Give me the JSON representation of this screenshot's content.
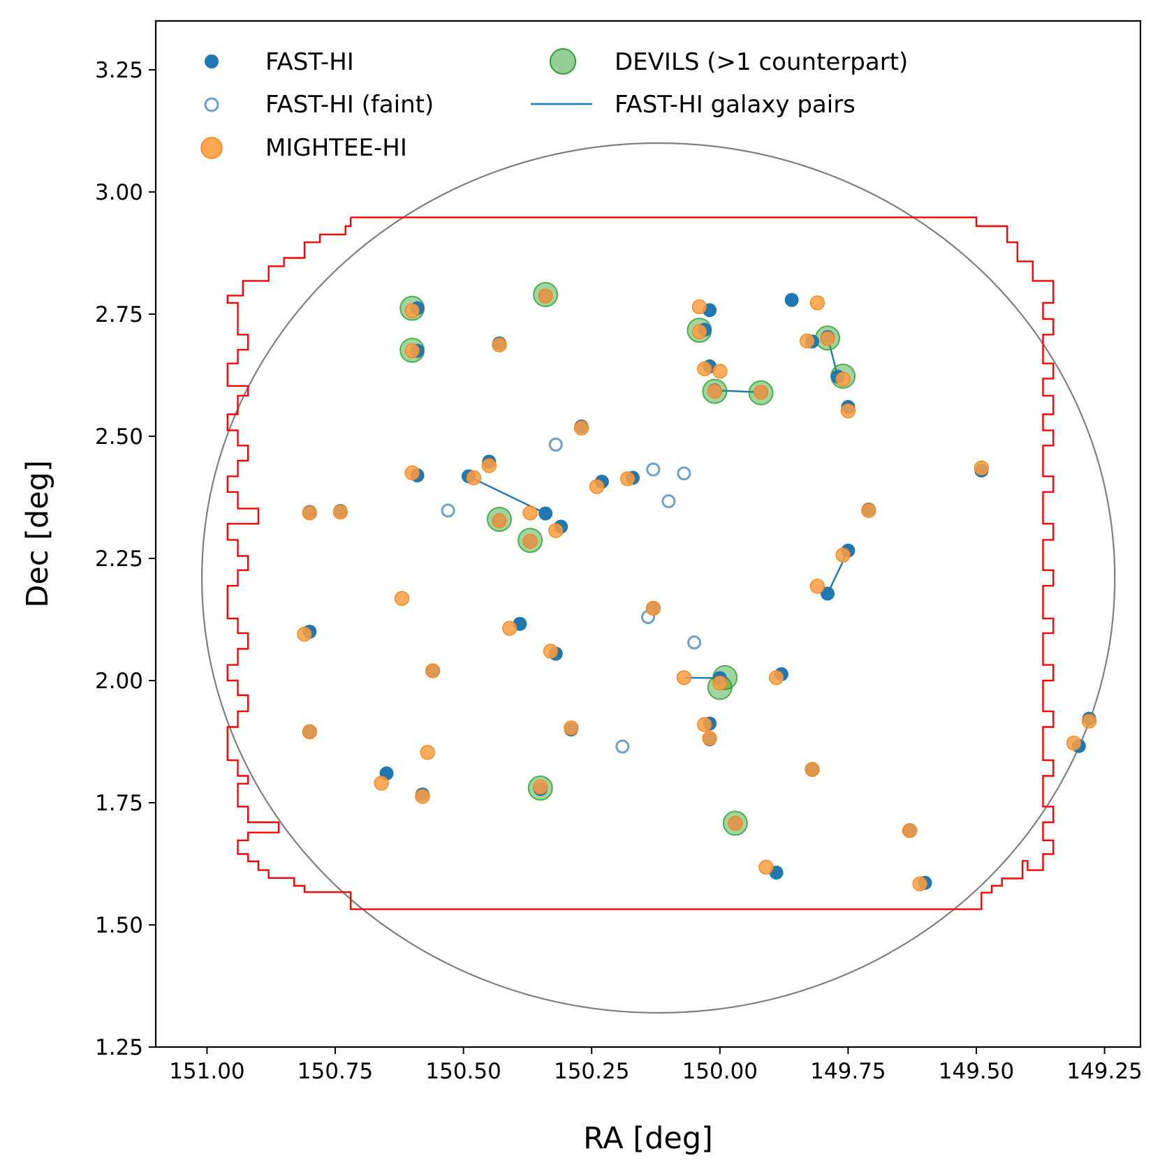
{
  "chart_data": {
    "type": "scatter",
    "xlabel": "RA [deg]",
    "ylabel": "Dec [deg]",
    "xlim": [
      151.1,
      149.18
    ],
    "ylim": [
      1.25,
      3.35
    ],
    "xticks": [
      151.0,
      150.75,
      150.5,
      150.25,
      150.0,
      149.75,
      149.5,
      149.25
    ],
    "xtick_labels": [
      "151.00",
      "150.75",
      "150.50",
      "150.25",
      "150.00",
      "149.75",
      "149.50",
      "149.25"
    ],
    "yticks": [
      1.25,
      1.5,
      1.75,
      2.0,
      2.25,
      2.5,
      2.75,
      3.0,
      3.25
    ],
    "ytick_labels": [
      "1.25",
      "1.50",
      "1.75",
      "2.00",
      "2.25",
      "2.50",
      "2.75",
      "3.00",
      "3.25"
    ],
    "grid": false,
    "legend": {
      "position": "top",
      "entries": [
        "FAST-HI",
        "FAST-HI (faint)",
        "MIGHTEE-HI",
        "DEVILS (>1 counterpart)",
        "FAST-HI galaxy pairs"
      ]
    },
    "colors": {
      "fast": "#1f77b4",
      "faint": "#6fa0c8",
      "mightee": "#ff9f40",
      "mightee_edge": "#ff7f0e",
      "devils": "#2ca02c",
      "footprint": "#ff0000",
      "circle": "#7f7f7f"
    },
    "reference_circle": {
      "center": [
        150.12,
        2.21
      ],
      "radius_deg": 0.89
    },
    "series": [
      {
        "name": "FAST-HI",
        "marker": "filled",
        "points": [
          [
            150.59,
            2.762
          ],
          [
            150.34,
            2.787
          ],
          [
            150.43,
            2.69
          ],
          [
            150.59,
            2.675
          ],
          [
            150.02,
            2.758
          ],
          [
            150.03,
            2.718
          ],
          [
            149.86,
            2.779
          ],
          [
            149.82,
            2.694
          ],
          [
            149.79,
            2.703
          ],
          [
            149.77,
            2.622
          ],
          [
            149.75,
            2.56
          ],
          [
            150.02,
            2.643
          ],
          [
            150.01,
            2.594
          ],
          [
            149.92,
            2.59
          ],
          [
            150.27,
            2.52
          ],
          [
            150.59,
            2.42
          ],
          [
            150.45,
            2.448
          ],
          [
            150.49,
            2.418
          ],
          [
            150.23,
            2.407
          ],
          [
            150.17,
            2.415
          ],
          [
            150.8,
            2.345
          ],
          [
            150.74,
            2.347
          ],
          [
            150.43,
            2.328
          ],
          [
            150.34,
            2.342
          ],
          [
            150.31,
            2.315
          ],
          [
            149.71,
            2.35
          ],
          [
            149.75,
            2.266
          ],
          [
            149.79,
            2.178
          ],
          [
            150.37,
            2.285
          ],
          [
            150.13,
            2.148
          ],
          [
            150.39,
            2.116
          ],
          [
            150.8,
            2.1
          ],
          [
            150.56,
            2.02
          ],
          [
            150.32,
            2.055
          ],
          [
            149.88,
            2.013
          ],
          [
            150.0,
            2.005
          ],
          [
            150.02,
            1.912
          ],
          [
            150.02,
            1.88
          ],
          [
            150.29,
            1.9
          ],
          [
            150.8,
            1.896
          ],
          [
            150.65,
            1.81
          ],
          [
            150.58,
            1.767
          ],
          [
            150.35,
            1.778
          ],
          [
            149.97,
            1.708
          ],
          [
            149.82,
            1.818
          ],
          [
            149.89,
            1.607
          ],
          [
            149.63,
            1.693
          ],
          [
            149.6,
            1.586
          ],
          [
            149.3,
            1.866
          ],
          [
            149.28,
            1.922
          ],
          [
            149.49,
            2.43
          ]
        ]
      },
      {
        "name": "FAST-HI (faint)",
        "marker": "open",
        "points": [
          [
            150.32,
            2.483
          ],
          [
            150.13,
            2.432
          ],
          [
            150.07,
            2.424
          ],
          [
            150.1,
            2.367
          ],
          [
            150.53,
            2.348
          ],
          [
            150.14,
            2.13
          ],
          [
            150.05,
            2.078
          ],
          [
            150.19,
            1.865
          ]
        ]
      },
      {
        "name": "MIGHTEE-HI",
        "marker": "filled-large",
        "points": [
          [
            150.6,
            2.757
          ],
          [
            150.34,
            2.787
          ],
          [
            150.43,
            2.687
          ],
          [
            150.6,
            2.675
          ],
          [
            150.04,
            2.765
          ],
          [
            150.04,
            2.714
          ],
          [
            149.81,
            2.773
          ],
          [
            149.83,
            2.695
          ],
          [
            149.79,
            2.7
          ],
          [
            149.76,
            2.617
          ],
          [
            149.75,
            2.552
          ],
          [
            150.03,
            2.638
          ],
          [
            150.0,
            2.633
          ],
          [
            150.01,
            2.592
          ],
          [
            149.92,
            2.59
          ],
          [
            150.27,
            2.517
          ],
          [
            150.6,
            2.425
          ],
          [
            150.45,
            2.44
          ],
          [
            150.48,
            2.415
          ],
          [
            150.24,
            2.397
          ],
          [
            150.18,
            2.413
          ],
          [
            150.8,
            2.343
          ],
          [
            150.74,
            2.345
          ],
          [
            150.43,
            2.327
          ],
          [
            150.37,
            2.343
          ],
          [
            150.32,
            2.307
          ],
          [
            149.71,
            2.348
          ],
          [
            149.76,
            2.257
          ],
          [
            149.81,
            2.193
          ],
          [
            150.37,
            2.285
          ],
          [
            150.13,
            2.148
          ],
          [
            150.41,
            2.107
          ],
          [
            150.81,
            2.095
          ],
          [
            150.56,
            2.02
          ],
          [
            150.33,
            2.06
          ],
          [
            150.07,
            2.006
          ],
          [
            149.89,
            2.006
          ],
          [
            150.0,
            1.995
          ],
          [
            150.03,
            1.91
          ],
          [
            150.02,
            1.882
          ],
          [
            150.29,
            1.903
          ],
          [
            150.8,
            1.895
          ],
          [
            150.57,
            1.853
          ],
          [
            150.66,
            1.79
          ],
          [
            150.58,
            1.763
          ],
          [
            150.35,
            1.782
          ],
          [
            149.97,
            1.708
          ],
          [
            149.82,
            1.818
          ],
          [
            149.91,
            1.618
          ],
          [
            149.63,
            1.693
          ],
          [
            149.61,
            1.584
          ],
          [
            149.31,
            1.872
          ],
          [
            149.28,
            1.917
          ],
          [
            149.49,
            2.435
          ],
          [
            150.62,
            2.168
          ]
        ]
      },
      {
        "name": "DEVILS (>1 counterpart)",
        "marker": "filled-large",
        "points": [
          [
            150.6,
            2.762
          ],
          [
            150.34,
            2.79
          ],
          [
            150.6,
            2.676
          ],
          [
            150.04,
            2.717
          ],
          [
            149.79,
            2.701
          ],
          [
            149.76,
            2.623
          ],
          [
            150.01,
            2.592
          ],
          [
            149.92,
            2.589
          ],
          [
            150.43,
            2.33
          ],
          [
            150.37,
            2.287
          ],
          [
            149.99,
            2.006
          ],
          [
            150.0,
            1.986
          ],
          [
            150.35,
            1.78
          ],
          [
            149.97,
            1.708
          ]
        ]
      },
      {
        "name": "FAST-HI galaxy pairs",
        "marker": "line",
        "segments": [
          [
            [
              150.49,
              2.418
            ],
            [
              150.34,
              2.342
            ]
          ],
          [
            [
              150.01,
              2.594
            ],
            [
              149.92,
              2.59
            ]
          ],
          [
            [
              149.79,
              2.703
            ],
            [
              149.77,
              2.622
            ]
          ],
          [
            [
              149.75,
              2.266
            ],
            [
              149.79,
              2.178
            ]
          ],
          [
            [
              150.07,
              2.006
            ],
            [
              150.0,
              2.005
            ]
          ]
        ]
      }
    ],
    "footprint_outline": [
      [
        150.72,
        2.948
      ],
      [
        149.5,
        2.948
      ],
      [
        149.5,
        2.93
      ],
      [
        149.44,
        2.93
      ],
      [
        149.44,
        2.897
      ],
      [
        149.42,
        2.897
      ],
      [
        149.42,
        2.858
      ],
      [
        149.39,
        2.858
      ],
      [
        149.39,
        2.818
      ],
      [
        149.35,
        2.818
      ],
      [
        149.35,
        2.773
      ],
      [
        149.37,
        2.773
      ],
      [
        149.37,
        2.74
      ],
      [
        149.35,
        2.74
      ],
      [
        149.35,
        2.708
      ],
      [
        149.37,
        2.708
      ],
      [
        149.37,
        2.649
      ],
      [
        149.35,
        2.649
      ],
      [
        149.35,
        2.618
      ],
      [
        149.37,
        2.618
      ],
      [
        149.37,
        2.583
      ],
      [
        149.35,
        2.583
      ],
      [
        149.35,
        2.545
      ],
      [
        149.37,
        2.545
      ],
      [
        149.37,
        2.512
      ],
      [
        149.35,
        2.512
      ],
      [
        149.35,
        2.481
      ],
      [
        149.37,
        2.481
      ],
      [
        149.37,
        2.418
      ],
      [
        149.35,
        2.418
      ],
      [
        149.35,
        2.386
      ],
      [
        149.37,
        2.386
      ],
      [
        149.37,
        2.321
      ],
      [
        149.35,
        2.321
      ],
      [
        149.35,
        2.288
      ],
      [
        149.37,
        2.288
      ],
      [
        149.37,
        2.226
      ],
      [
        149.35,
        2.226
      ],
      [
        149.35,
        2.194
      ],
      [
        149.37,
        2.194
      ],
      [
        149.37,
        2.127
      ],
      [
        149.35,
        2.127
      ],
      [
        149.35,
        2.097
      ],
      [
        149.37,
        2.097
      ],
      [
        149.37,
        2.032
      ],
      [
        149.35,
        2.032
      ],
      [
        149.35,
        2.0
      ],
      [
        149.37,
        2.0
      ],
      [
        149.37,
        1.937
      ],
      [
        149.35,
        1.937
      ],
      [
        149.35,
        1.905
      ],
      [
        149.37,
        1.905
      ],
      [
        149.37,
        1.837
      ],
      [
        149.35,
        1.837
      ],
      [
        149.35,
        1.805
      ],
      [
        149.37,
        1.805
      ],
      [
        149.37,
        1.742
      ],
      [
        149.35,
        1.742
      ],
      [
        149.35,
        1.71
      ],
      [
        149.37,
        1.71
      ],
      [
        149.37,
        1.673
      ],
      [
        149.35,
        1.673
      ],
      [
        149.35,
        1.645
      ],
      [
        149.37,
        1.645
      ],
      [
        149.37,
        1.612
      ],
      [
        149.4,
        1.612
      ],
      [
        149.4,
        1.631
      ],
      [
        149.41,
        1.631
      ],
      [
        149.41,
        1.595
      ],
      [
        149.45,
        1.595
      ],
      [
        149.45,
        1.58
      ],
      [
        149.47,
        1.58
      ],
      [
        149.47,
        1.566
      ],
      [
        149.49,
        1.566
      ],
      [
        149.49,
        1.532
      ],
      [
        150.72,
        1.532
      ],
      [
        150.72,
        1.567
      ],
      [
        150.81,
        1.567
      ],
      [
        150.81,
        1.58
      ],
      [
        150.83,
        1.58
      ],
      [
        150.83,
        1.596
      ],
      [
        150.88,
        1.596
      ],
      [
        150.88,
        1.612
      ],
      [
        150.9,
        1.612
      ],
      [
        150.9,
        1.63
      ],
      [
        150.92,
        1.63
      ],
      [
        150.92,
        1.645
      ],
      [
        150.94,
        1.645
      ],
      [
        150.94,
        1.673
      ],
      [
        150.92,
        1.673
      ],
      [
        150.92,
        1.689
      ],
      [
        150.86,
        1.689
      ],
      [
        150.86,
        1.71
      ],
      [
        150.92,
        1.71
      ],
      [
        150.92,
        1.742
      ],
      [
        150.94,
        1.742
      ],
      [
        150.94,
        1.789
      ],
      [
        150.92,
        1.789
      ],
      [
        150.92,
        1.805
      ],
      [
        150.94,
        1.805
      ],
      [
        150.94,
        1.837
      ],
      [
        150.96,
        1.837
      ],
      [
        150.96,
        1.905
      ],
      [
        150.94,
        1.905
      ],
      [
        150.94,
        1.937
      ],
      [
        150.92,
        1.937
      ],
      [
        150.92,
        1.97
      ],
      [
        150.94,
        1.97
      ],
      [
        150.94,
        2.0
      ],
      [
        150.96,
        2.0
      ],
      [
        150.96,
        2.032
      ],
      [
        150.94,
        2.032
      ],
      [
        150.94,
        2.065
      ],
      [
        150.92,
        2.065
      ],
      [
        150.92,
        2.097
      ],
      [
        150.94,
        2.097
      ],
      [
        150.94,
        2.127
      ],
      [
        150.96,
        2.127
      ],
      [
        150.96,
        2.194
      ],
      [
        150.94,
        2.194
      ],
      [
        150.94,
        2.226
      ],
      [
        150.92,
        2.226
      ],
      [
        150.92,
        2.255
      ],
      [
        150.94,
        2.255
      ],
      [
        150.94,
        2.288
      ],
      [
        150.96,
        2.288
      ],
      [
        150.96,
        2.321
      ],
      [
        150.9,
        2.321
      ],
      [
        150.9,
        2.352
      ],
      [
        150.94,
        2.352
      ],
      [
        150.94,
        2.386
      ],
      [
        150.96,
        2.386
      ],
      [
        150.96,
        2.418
      ],
      [
        150.94,
        2.418
      ],
      [
        150.94,
        2.45
      ],
      [
        150.92,
        2.45
      ],
      [
        150.92,
        2.481
      ],
      [
        150.94,
        2.481
      ],
      [
        150.94,
        2.512
      ],
      [
        150.96,
        2.512
      ],
      [
        150.96,
        2.545
      ],
      [
        150.94,
        2.545
      ],
      [
        150.94,
        2.583
      ],
      [
        150.92,
        2.583
      ],
      [
        150.92,
        2.603
      ],
      [
        150.96,
        2.603
      ],
      [
        150.96,
        2.649
      ],
      [
        150.94,
        2.649
      ],
      [
        150.94,
        2.677
      ],
      [
        150.92,
        2.677
      ],
      [
        150.92,
        2.708
      ],
      [
        150.94,
        2.708
      ],
      [
        150.94,
        2.773
      ],
      [
        150.96,
        2.773
      ],
      [
        150.96,
        2.788
      ],
      [
        150.93,
        2.788
      ],
      [
        150.93,
        2.818
      ],
      [
        150.88,
        2.818
      ],
      [
        150.88,
        2.848
      ],
      [
        150.85,
        2.848
      ],
      [
        150.85,
        2.865
      ],
      [
        150.81,
        2.865
      ],
      [
        150.81,
        2.897
      ],
      [
        150.78,
        2.897
      ],
      [
        150.78,
        2.913
      ],
      [
        150.73,
        2.913
      ],
      [
        150.73,
        2.93
      ],
      [
        150.72,
        2.93
      ],
      [
        150.72,
        2.948
      ]
    ]
  }
}
